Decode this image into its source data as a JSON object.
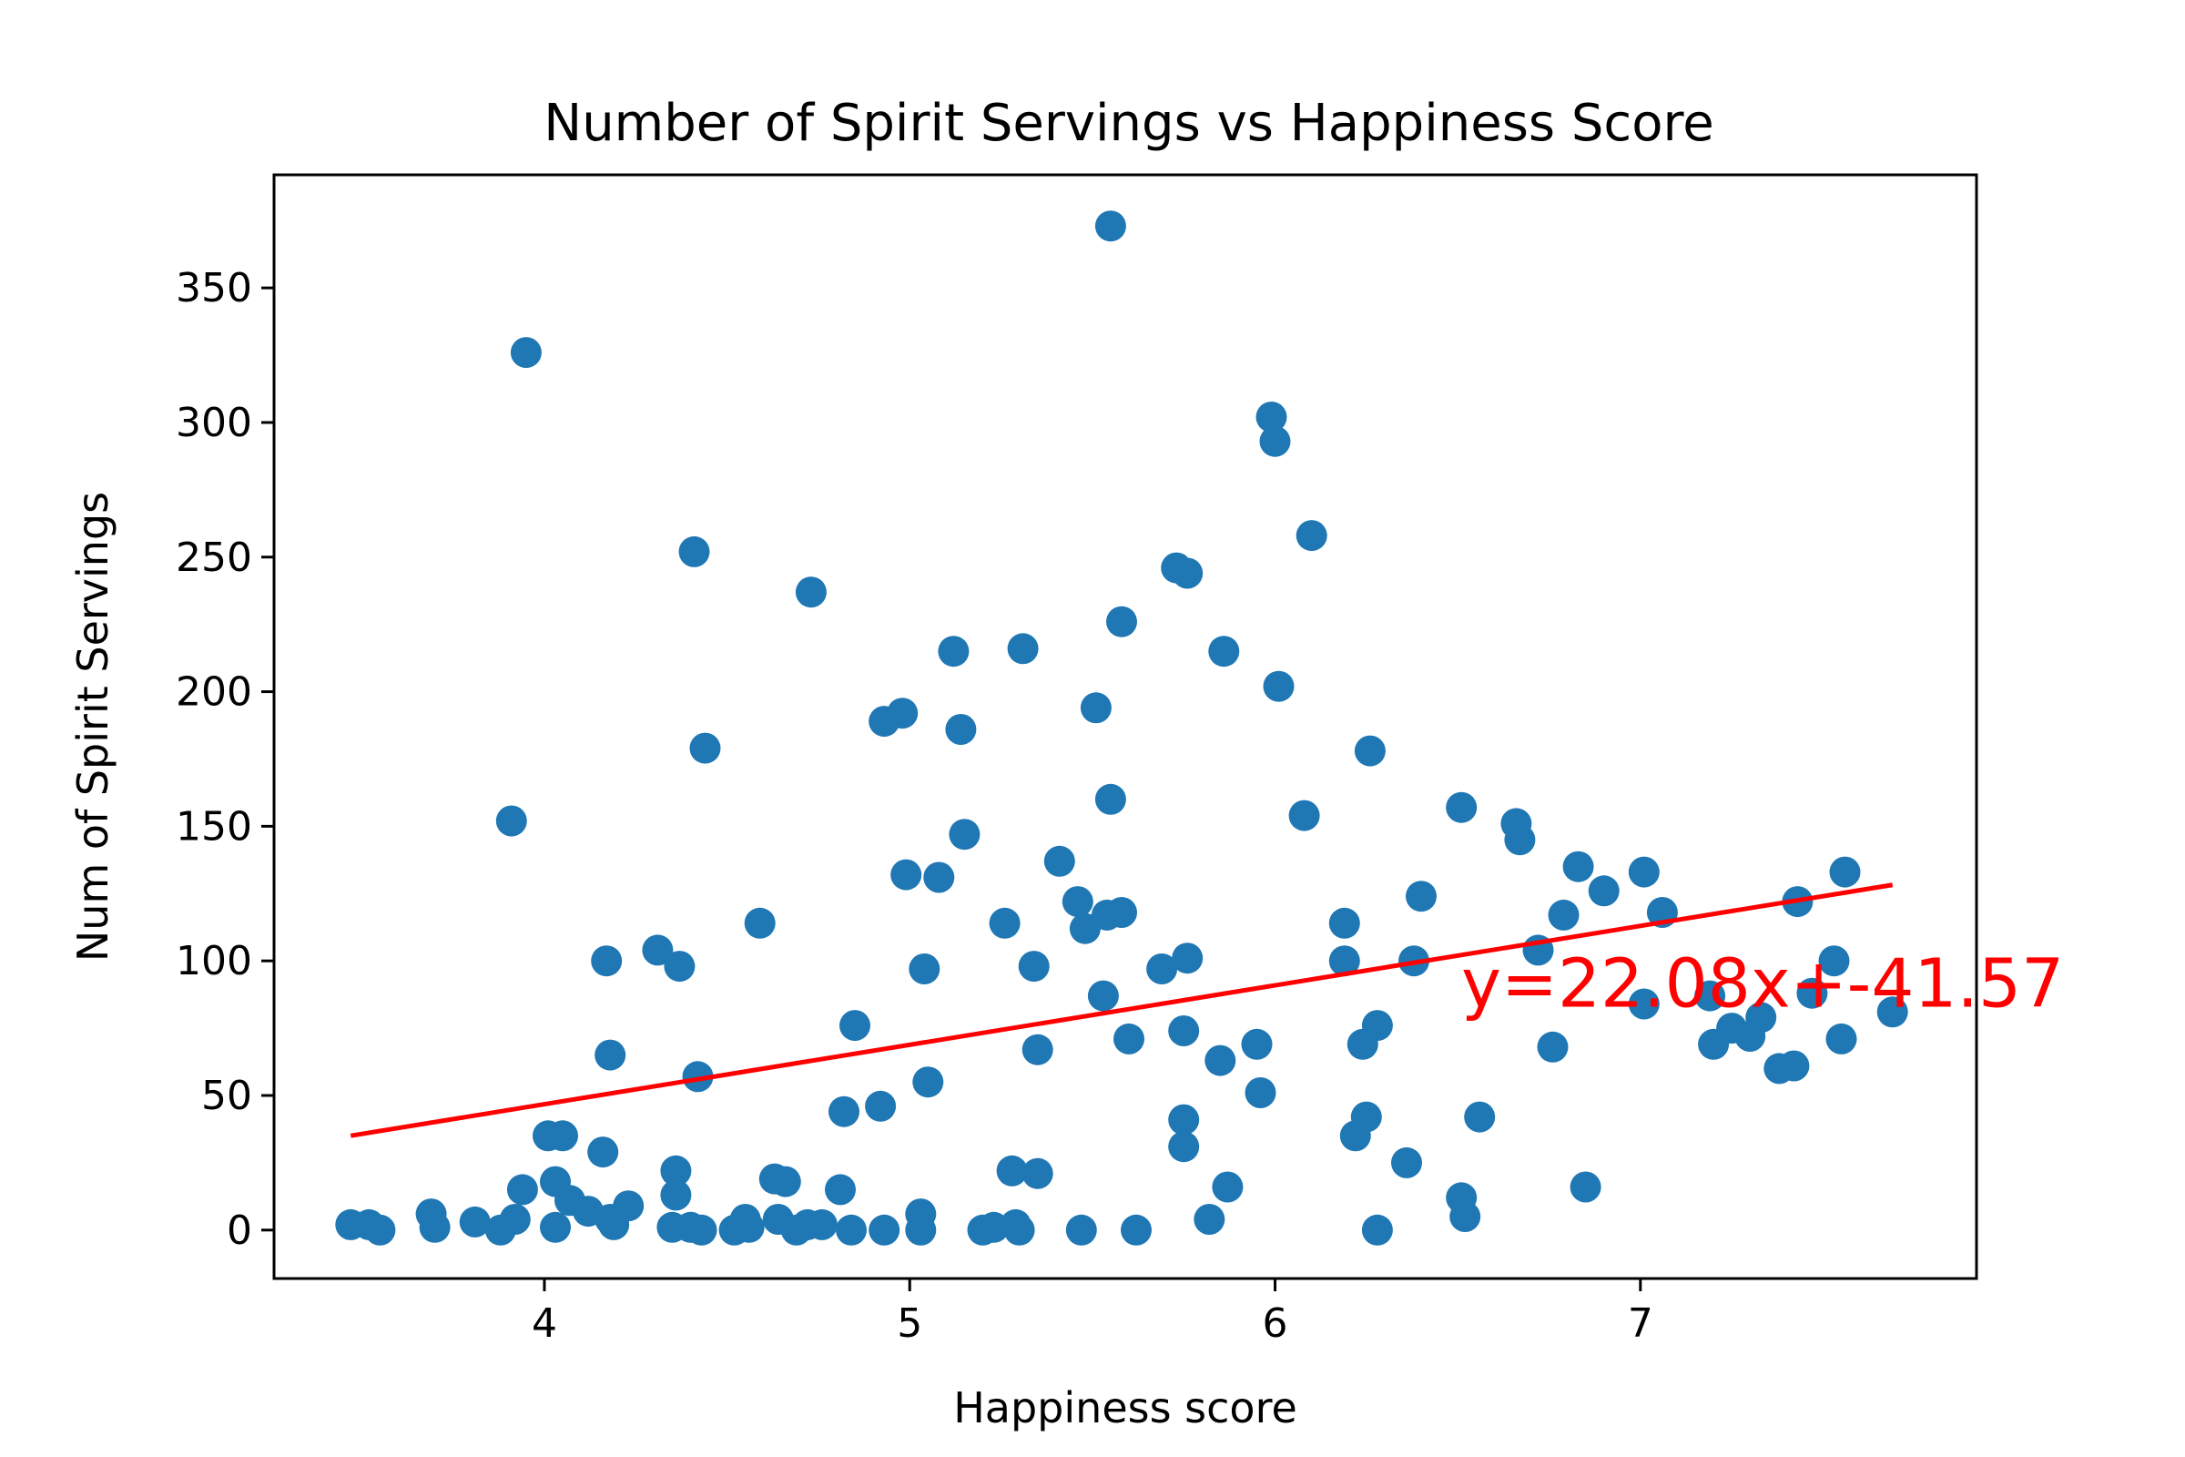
{
  "chart_data": {
    "type": "scatter",
    "title": "Number of Spirit Servings vs Happiness Score",
    "xlabel": "Happiness score",
    "ylabel": "Num of Spirit Servings",
    "xlim": [
      3.26,
      7.92
    ],
    "ylim": [
      -18,
      392
    ],
    "xticks": [
      4,
      5,
      6,
      7
    ],
    "yticks": [
      0,
      50,
      100,
      150,
      200,
      250,
      300,
      350
    ],
    "grid": false,
    "point_color": "#1f77b4",
    "line_color": "#ff0000",
    "regression": {
      "slope": 22.08,
      "intercept": -41.57,
      "x_start": 3.47,
      "x_end": 7.69
    },
    "annotation": {
      "text": "y=22.08x+-41.57",
      "x": 6.51,
      "y": 83
    },
    "points": [
      [
        3.47,
        2
      ],
      [
        3.52,
        2
      ],
      [
        3.55,
        0
      ],
      [
        3.69,
        6
      ],
      [
        3.7,
        1
      ],
      [
        3.81,
        3
      ],
      [
        3.88,
        0
      ],
      [
        3.91,
        152
      ],
      [
        3.92,
        4
      ],
      [
        3.94,
        15
      ],
      [
        3.95,
        326
      ],
      [
        4.01,
        35
      ],
      [
        4.03,
        1
      ],
      [
        4.03,
        18
      ],
      [
        4.05,
        35
      ],
      [
        4.07,
        11
      ],
      [
        4.12,
        7
      ],
      [
        4.16,
        29
      ],
      [
        4.17,
        100
      ],
      [
        4.18,
        4
      ],
      [
        4.18,
        65
      ],
      [
        4.19,
        2
      ],
      [
        4.23,
        9
      ],
      [
        4.31,
        104
      ],
      [
        4.35,
        1
      ],
      [
        4.36,
        22
      ],
      [
        4.36,
        13
      ],
      [
        4.37,
        98
      ],
      [
        4.4,
        1
      ],
      [
        4.41,
        252
      ],
      [
        4.42,
        57
      ],
      [
        4.43,
        0
      ],
      [
        4.44,
        179
      ],
      [
        4.52,
        0
      ],
      [
        4.55,
        4
      ],
      [
        4.56,
        1
      ],
      [
        4.59,
        114
      ],
      [
        4.63,
        19
      ],
      [
        4.64,
        4
      ],
      [
        4.66,
        18
      ],
      [
        4.69,
        0
      ],
      [
        4.72,
        2
      ],
      [
        4.73,
        237
      ],
      [
        4.76,
        2
      ],
      [
        4.81,
        15
      ],
      [
        4.82,
        44
      ],
      [
        4.84,
        0
      ],
      [
        4.85,
        76
      ],
      [
        4.92,
        46
      ],
      [
        4.93,
        0
      ],
      [
        4.93,
        189
      ],
      [
        4.98,
        192
      ],
      [
        4.99,
        132
      ],
      [
        5.03,
        0
      ],
      [
        5.03,
        6
      ],
      [
        5.04,
        97
      ],
      [
        5.05,
        55
      ],
      [
        5.08,
        131
      ],
      [
        5.12,
        215
      ],
      [
        5.14,
        186
      ],
      [
        5.15,
        147
      ],
      [
        5.2,
        0
      ],
      [
        5.23,
        1
      ],
      [
        5.26,
        114
      ],
      [
        5.28,
        22
      ],
      [
        5.29,
        2
      ],
      [
        5.3,
        0
      ],
      [
        5.31,
        216
      ],
      [
        5.34,
        98
      ],
      [
        5.35,
        67
      ],
      [
        5.35,
        21
      ],
      [
        5.41,
        137
      ],
      [
        5.46,
        122
      ],
      [
        5.47,
        0
      ],
      [
        5.48,
        112
      ],
      [
        5.51,
        194
      ],
      [
        5.53,
        87
      ],
      [
        5.54,
        117
      ],
      [
        5.55,
        160
      ],
      [
        5.55,
        373
      ],
      [
        5.58,
        226
      ],
      [
        5.58,
        118
      ],
      [
        5.6,
        71
      ],
      [
        5.62,
        0
      ],
      [
        5.69,
        97
      ],
      [
        5.73,
        246
      ],
      [
        5.75,
        41
      ],
      [
        5.75,
        31
      ],
      [
        5.75,
        74
      ],
      [
        5.76,
        101
      ],
      [
        5.76,
        244
      ],
      [
        5.82,
        4
      ],
      [
        5.85,
        63
      ],
      [
        5.86,
        215
      ],
      [
        5.87,
        16
      ],
      [
        5.95,
        69
      ],
      [
        5.96,
        51
      ],
      [
        5.99,
        302
      ],
      [
        6.0,
        293
      ],
      [
        6.01,
        202
      ],
      [
        6.08,
        154
      ],
      [
        6.1,
        258
      ],
      [
        6.19,
        114
      ],
      [
        6.19,
        100
      ],
      [
        6.22,
        35
      ],
      [
        6.24,
        69
      ],
      [
        6.25,
        42
      ],
      [
        6.26,
        178
      ],
      [
        6.28,
        76
      ],
      [
        6.28,
        0
      ],
      [
        6.36,
        25
      ],
      [
        6.38,
        100
      ],
      [
        6.4,
        124
      ],
      [
        6.51,
        157
      ],
      [
        6.51,
        12
      ],
      [
        6.52,
        5
      ],
      [
        6.56,
        42
      ],
      [
        6.66,
        151
      ],
      [
        6.67,
        145
      ],
      [
        6.72,
        104
      ],
      [
        6.76,
        68
      ],
      [
        6.79,
        117
      ],
      [
        6.83,
        135
      ],
      [
        6.85,
        16
      ],
      [
        6.9,
        126
      ],
      [
        7.01,
        133
      ],
      [
        7.01,
        84
      ],
      [
        7.06,
        118
      ],
      [
        7.19,
        87
      ],
      [
        7.2,
        69
      ],
      [
        7.25,
        75
      ],
      [
        7.3,
        72
      ],
      [
        7.33,
        79
      ],
      [
        7.38,
        60
      ],
      [
        7.42,
        61
      ],
      [
        7.43,
        122
      ],
      [
        7.47,
        88
      ],
      [
        7.53,
        100
      ],
      [
        7.55,
        71
      ],
      [
        7.56,
        133
      ],
      [
        7.69,
        81
      ]
    ]
  }
}
